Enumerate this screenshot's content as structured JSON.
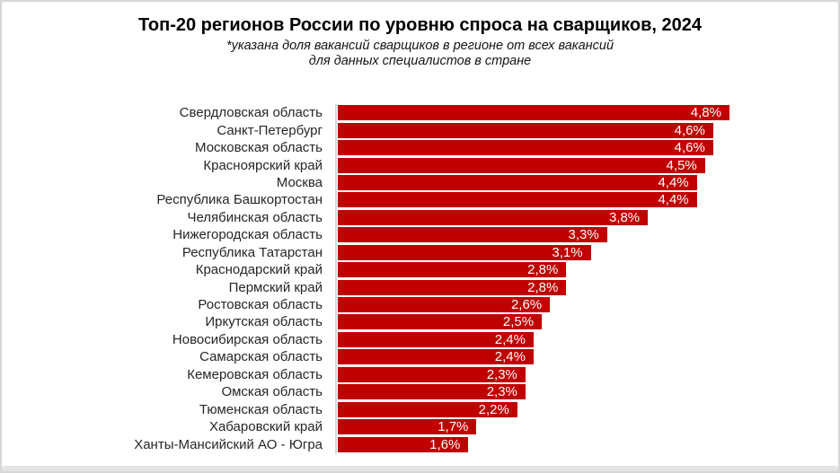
{
  "window": {
    "background": "#FFFFFF",
    "border_color": "#D6D6D6",
    "bottom_strip_color": "#E4E4E4"
  },
  "chart_data": {
    "type": "bar",
    "orientation": "horizontal",
    "title": "Топ-20 регионов России по уровню спроса на сварщиков, 2024",
    "subtitle_line1": "*указана доля вакансий сварщиков в регионе от всех вакансий",
    "subtitle_line2": "для данных специалистов в стране",
    "categories": [
      "Свердловская область",
      "Санкт-Петербург",
      "Московская область",
      "Красноярский край",
      "Москва",
      "Республика Башкортостан",
      "Челябинская область",
      "Нижегородская область",
      "Республика Татарстан",
      "Краснодарский край",
      "Пермский край",
      "Ростовская область",
      "Иркутская область",
      "Новосибирская область",
      "Самарская область",
      "Кемеровская область",
      "Омская область",
      "Тюменская область",
      "Хабаровский край",
      "Ханты-Мансийский АО - Югра"
    ],
    "values": [
      4.8,
      4.6,
      4.6,
      4.5,
      4.4,
      4.4,
      3.8,
      3.3,
      3.1,
      2.8,
      2.8,
      2.6,
      2.5,
      2.4,
      2.4,
      2.3,
      2.3,
      2.2,
      1.7,
      1.6
    ],
    "value_labels": [
      "4,8%",
      "4,6%",
      "4,6%",
      "4,5%",
      "4,4%",
      "4,4%",
      "3,8%",
      "3,3%",
      "3,1%",
      "2,8%",
      "2,8%",
      "2,6%",
      "2,5%",
      "2,4%",
      "2,4%",
      "2,3%",
      "2,3%",
      "2,2%",
      "1,7%",
      "1,6%"
    ],
    "bar_color": "#C00000",
    "value_text_color": "#FFFFFF",
    "category_label_color": "#262626",
    "axis_line_color": "#D9D9D9",
    "xlim": [
      0,
      4.8
    ],
    "grid": "off",
    "legend": "none"
  }
}
